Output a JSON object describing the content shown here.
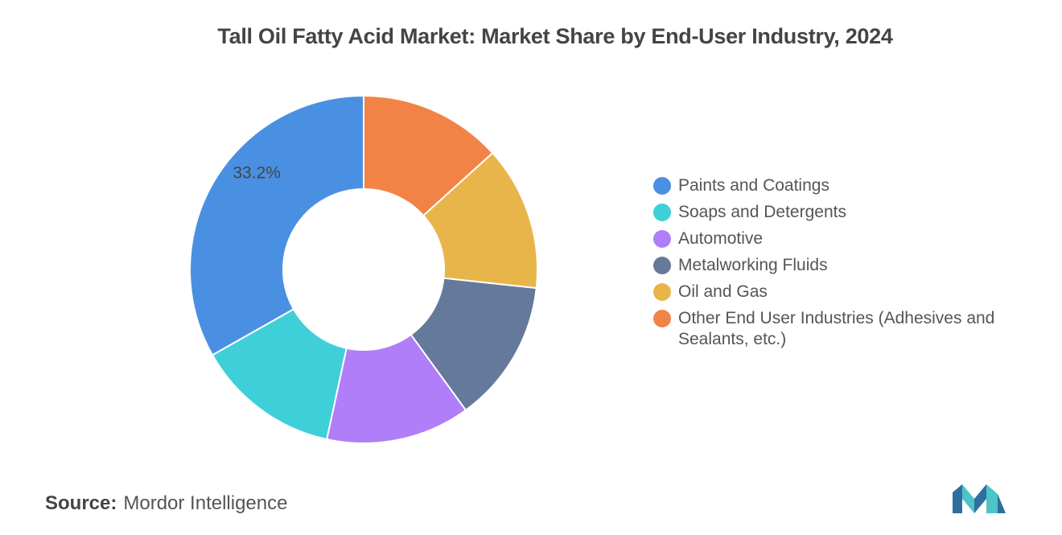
{
  "title": "Tall Oil Fatty Acid Market: Market Share by End-User Industry, 2024",
  "source": {
    "key": "Source:",
    "value": "Mordor Intelligence"
  },
  "chart_data": {
    "type": "pie",
    "donut": true,
    "title": "Tall Oil Fatty Acid Market: Market Share by End-User Industry, 2024",
    "categories": [
      "Paints and Coatings",
      "Soaps and Detergents",
      "Automotive",
      "Metalworking Fluids",
      "Oil and Gas",
      "Other End User Industries (Adhesives and Sealants, etc.)"
    ],
    "values": [
      33.2,
      13.4,
      13.4,
      13.3,
      13.4,
      13.3
    ],
    "colors": [
      "#4a90e2",
      "#3fcfd9",
      "#b07ef8",
      "#65799b",
      "#e8b54a",
      "#f28346"
    ],
    "data_labels": [
      "33.2%",
      "",
      "",
      "",
      "",
      ""
    ],
    "legend_position": "right"
  }
}
